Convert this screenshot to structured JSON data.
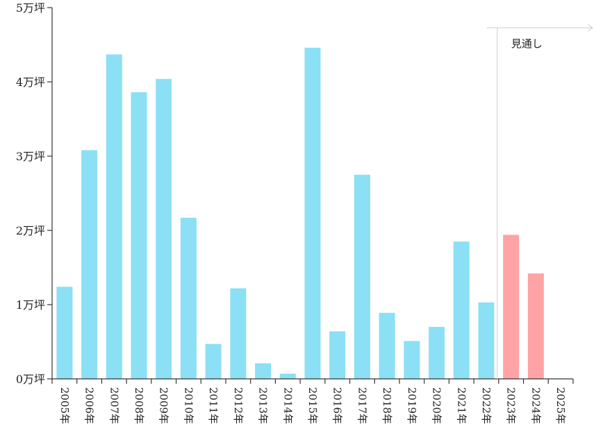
{
  "chart_data": {
    "type": "bar",
    "title": "",
    "xlabel": "",
    "ylabel": "",
    "categories": [
      "2005年",
      "2006年",
      "2007年",
      "2008年",
      "2009年",
      "2010年",
      "2011年",
      "2012年",
      "2013年",
      "2014年",
      "2015年",
      "2016年",
      "2017年",
      "2018年",
      "2019年",
      "2020年",
      "2021年",
      "2022年",
      "2023年",
      "2024年",
      "2025年"
    ],
    "series": [
      {
        "values": [
          1.24,
          3.08,
          4.37,
          3.86,
          4.04,
          2.17,
          0.47,
          1.22,
          0.21,
          0.07,
          4.46,
          0.64,
          2.75,
          0.89,
          0.51,
          0.7,
          1.85,
          1.03,
          1.94,
          1.42,
          null
        ],
        "kind": [
          "actual",
          "actual",
          "actual",
          "actual",
          "actual",
          "actual",
          "actual",
          "actual",
          "actual",
          "actual",
          "actual",
          "actual",
          "actual",
          "actual",
          "actual",
          "actual",
          "actual",
          "actual",
          "forecast",
          "forecast",
          "forecast"
        ]
      }
    ],
    "ylim": [
      0,
      5
    ],
    "yticks": [
      {
        "value": 0,
        "label": "0万坪"
      },
      {
        "value": 1,
        "label": "1万坪"
      },
      {
        "value": 2,
        "label": "2万坪"
      },
      {
        "value": 3,
        "label": "3万坪"
      },
      {
        "value": 4,
        "label": "4万坪"
      },
      {
        "value": 5,
        "label": "5万坪"
      }
    ],
    "grid": false,
    "legend": "none",
    "annotation": {
      "text": "見通し",
      "from_category": "2023年"
    },
    "colors": {
      "actual": "#8be0f5",
      "forecast": "#ffa3a6",
      "axis": "#333333",
      "annotation_line": "#cccccc"
    }
  }
}
